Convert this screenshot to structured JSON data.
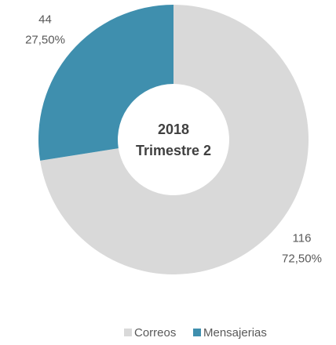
{
  "chart_data": {
    "type": "donut",
    "center_text": [
      "2018",
      "Trimestre 2"
    ],
    "categories": [
      "Correos",
      "Mensajerias"
    ],
    "values": [
      116,
      44
    ],
    "percentages": [
      72.5,
      27.5
    ],
    "percentage_labels": [
      "72,50%",
      "27,50%"
    ],
    "colors": [
      "#d9d9d9",
      "#3f8fae"
    ],
    "legend": "bottom"
  }
}
